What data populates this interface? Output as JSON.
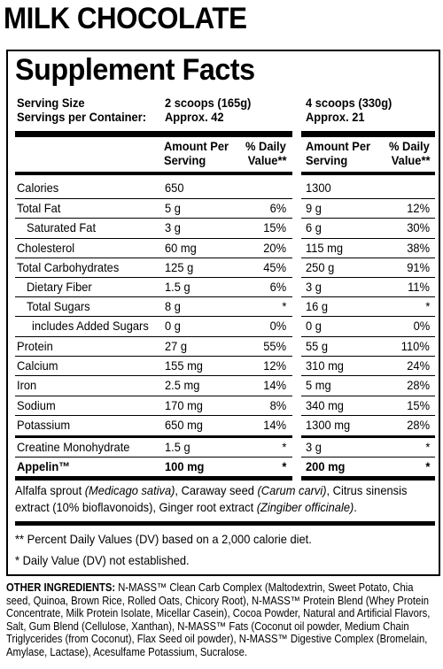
{
  "product": {
    "title": "MILK CHOCOLATE"
  },
  "facts": {
    "title": "Supplement Facts",
    "serving_size_label": "Serving Size",
    "servings_label": "Servings per Container:",
    "col_a": {
      "serving": "2 scoops (165g)",
      "servings": "Approx. 42"
    },
    "col_b": {
      "serving": "4 scoops (330g)",
      "servings": "Approx. 21"
    },
    "header": {
      "amount": [
        "Amount Per",
        "Serving"
      ],
      "dv": [
        "% Daily",
        "Value**"
      ]
    },
    "rows": [
      {
        "name": "Calories",
        "indent": 0,
        "a_amt": "650",
        "a_dv": "",
        "b_amt": "1300",
        "b_dv": ""
      },
      {
        "name": "Total Fat",
        "indent": 0,
        "a_amt": "5 g",
        "a_dv": "6%",
        "b_amt": "9 g",
        "b_dv": "12%"
      },
      {
        "name": "Saturated Fat",
        "indent": 1,
        "a_amt": "3 g",
        "a_dv": "15%",
        "b_amt": "6 g",
        "b_dv": "30%"
      },
      {
        "name": "Cholesterol",
        "indent": 0,
        "a_amt": "60 mg",
        "a_dv": "20%",
        "b_amt": "115 mg",
        "b_dv": "38%"
      },
      {
        "name": "Total Carbohydrates",
        "indent": 0,
        "a_amt": "125 g",
        "a_dv": "45%",
        "b_amt": "250 g",
        "b_dv": "91%"
      },
      {
        "name": "Dietary Fiber",
        "indent": 1,
        "a_amt": "1.5 g",
        "a_dv": "6%",
        "b_amt": "3 g",
        "b_dv": "11%"
      },
      {
        "name": "Total Sugars",
        "indent": 1,
        "a_amt": "8 g",
        "a_dv": "*",
        "b_amt": "16 g",
        "b_dv": "*"
      },
      {
        "name": "includes Added Sugars",
        "indent": 2,
        "a_amt": "0 g",
        "a_dv": "0%",
        "b_amt": "0 g",
        "b_dv": "0%"
      },
      {
        "name": "Protein",
        "indent": 0,
        "a_amt": "27 g",
        "a_dv": "55%",
        "b_amt": "55 g",
        "b_dv": "110%"
      },
      {
        "name": "Calcium",
        "indent": 0,
        "a_amt": "155 mg",
        "a_dv": "12%",
        "b_amt": "310 mg",
        "b_dv": "24%"
      },
      {
        "name": "Iron",
        "indent": 0,
        "a_amt": "2.5 mg",
        "a_dv": "14%",
        "b_amt": "5 mg",
        "b_dv": "28%"
      },
      {
        "name": "Sodium",
        "indent": 0,
        "a_amt": "170 mg",
        "a_dv": "8%",
        "b_amt": "340 mg",
        "b_dv": "15%"
      },
      {
        "name": "Potassium",
        "indent": 0,
        "a_amt": "650 mg",
        "a_dv": "14%",
        "b_amt": "1300 mg",
        "b_dv": "28%"
      },
      {
        "name": "Creatine Monohydrate",
        "indent": 0,
        "a_amt": "1.5 g",
        "a_dv": "*",
        "b_amt": "3 g",
        "b_dv": "*"
      },
      {
        "name": "Appelin™",
        "indent": 0,
        "bold": true,
        "a_amt": "100 mg",
        "a_dv": "*",
        "b_amt": "200 mg",
        "b_dv": "*"
      }
    ],
    "blend_line1_parts": [
      "Alfalfa sprout ",
      "(Medicago sativa)",
      ", Caraway seed ",
      "(Carum carvi)",
      ", Citrus sinensis"
    ],
    "blend_line2_parts": [
      "extract (10% bioflavonoids), Ginger root extract ",
      "(Zingiber officinale)",
      "."
    ],
    "footnote1": "** Percent Daily Values (DV) based on a 2,000 calorie diet.",
    "footnote2": "* Daily Value (DV) not established."
  },
  "ingredients": {
    "label": "OTHER INGREDIENTS:",
    "text": " N-MASS™ Clean Carb Complex (Maltodextrin, Sweet Potato, Chia seed, Quinoa, Brown Rice, Rolled Oats, Chicory Root), N-MASS™ Protein Blend (Whey Protein Concentrate, Milk Protein Isolate, Micellar Casein), Cocoa Powder, Natural and Artificial Flavors, Salt, Gum Blend (Cellulose, Xanthan), N-MASS™ Fats (Coconut oil powder, Medium Chain Triglycerides (from Coconut), Flax Seed oil powder), N-MASS™ Digestive Complex (Bromelain, Amylase, Lactase), Acesulfame Potassium, Sucralose."
  }
}
